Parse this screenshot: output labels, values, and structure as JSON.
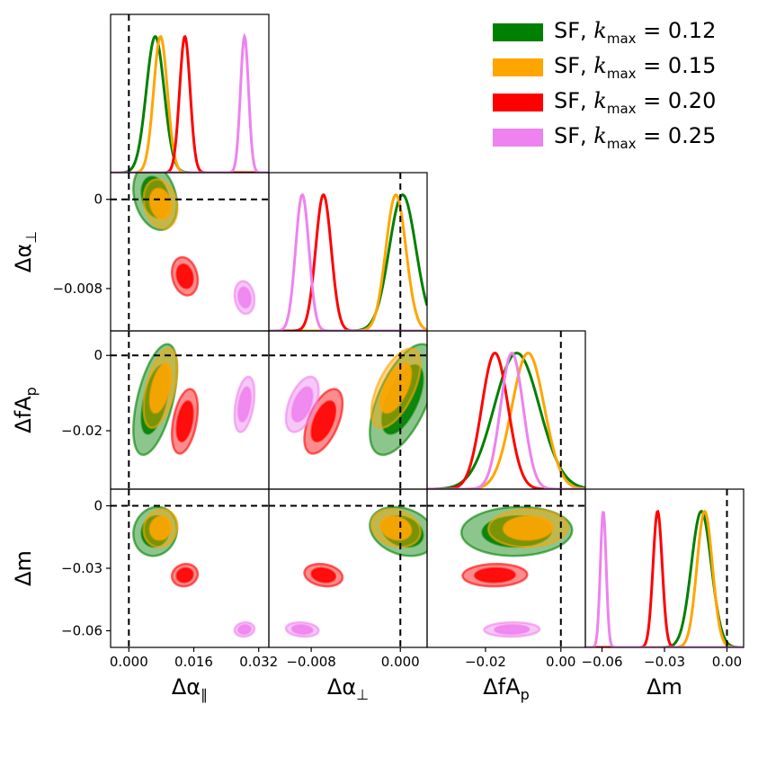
{
  "chart_data": {
    "type": "corner",
    "parameters": [
      {
        "key": "dapar",
        "label": "Δα",
        "label_sub": "∥",
        "range": [
          -0.0045,
          0.0345
        ],
        "ticks": [
          0,
          0.016,
          0.032
        ],
        "tick_labels": [
          "0.000",
          "0.016",
          "0.032"
        ],
        "fiducial": 0
      },
      {
        "key": "daperp",
        "label": "Δα",
        "label_sub": "⊥",
        "range": [
          -0.0118,
          0.0024
        ],
        "ticks": [
          -0.008,
          0
        ],
        "tick_labels": [
          "−0.008",
          "0.000"
        ],
        "y_tick_labels": [
          "−0.008",
          "0"
        ],
        "fiducial": 0
      },
      {
        "key": "dfap",
        "label": "ΔfA",
        "label_sub": "p",
        "range": [
          -0.0355,
          0.0065
        ],
        "ticks": [
          -0.02,
          0
        ],
        "tick_labels": [
          "−0.02",
          "0.00"
        ],
        "y_tick_labels": [
          "−0.02",
          "0"
        ],
        "fiducial": 0
      },
      {
        "key": "dm",
        "label": "Δm",
        "label_sub": "",
        "range": [
          -0.068,
          0.008
        ],
        "ticks": [
          -0.06,
          -0.03,
          0
        ],
        "tick_labels": [
          "−0.06",
          "−0.03",
          "0.00"
        ],
        "y_tick_labels": [
          "−0.06",
          "−0.03",
          "0"
        ],
        "fiducial": 0
      }
    ],
    "series": [
      {
        "name": "SF, k_max = 0.12",
        "color": "#008000",
        "mean": [
          0.0065,
          0.0002,
          -0.0117,
          -0.0123
        ],
        "sigma": [
          0.0022,
          0.0012,
          0.006,
          0.0048
        ],
        "corr": [
          [
            1,
            -0.25,
            0.55,
            0.1
          ],
          [
            -0.25,
            1,
            0.6,
            -0.25
          ],
          [
            0.55,
            0.6,
            1,
            0.05
          ],
          [
            0.1,
            -0.25,
            0.05,
            1
          ]
        ]
      },
      {
        "name": "SF, k_max = 0.15",
        "color": "#FFA500",
        "mean": [
          0.0078,
          -0.0004,
          -0.0087,
          -0.0107
        ],
        "sigma": [
          0.0017,
          0.0009,
          0.0043,
          0.0037
        ],
        "corr": [
          [
            1,
            -0.2,
            0.5,
            0.1
          ],
          [
            -0.2,
            1,
            0.6,
            -0.2
          ],
          [
            0.5,
            0.6,
            1,
            0.05
          ],
          [
            0.1,
            -0.2,
            0.05,
            1
          ]
        ]
      },
      {
        "name": "SF, k_max = 0.20",
        "color": "#FF0000",
        "mean": [
          0.0138,
          -0.0069,
          -0.0175,
          -0.0333
        ],
        "sigma": [
          0.0013,
          0.0007,
          0.0035,
          0.0022
        ],
        "corr": [
          [
            1,
            -0.2,
            0.4,
            0.1
          ],
          [
            -0.2,
            1,
            0.55,
            -0.2
          ],
          [
            0.4,
            0.55,
            1,
            0.05
          ],
          [
            0.1,
            -0.2,
            0.05,
            1
          ]
        ]
      },
      {
        "name": "SF, k_max = 0.25",
        "color": "#EE82EE",
        "mean": [
          0.0285,
          -0.0088,
          -0.013,
          -0.0594
        ],
        "sigma": [
          0.001,
          0.0006,
          0.003,
          0.0014
        ],
        "corr": [
          [
            1,
            -0.15,
            0.4,
            0.1
          ],
          [
            -0.15,
            1,
            0.5,
            -0.15
          ],
          [
            0.4,
            0.5,
            1,
            0.05
          ],
          [
            0.1,
            -0.15,
            0.05,
            1
          ]
        ]
      }
    ],
    "legend": [
      {
        "prefix": "SF, ",
        "k": "k",
        "sub": "max",
        "value": " = 0.12",
        "color": "#008000"
      },
      {
        "prefix": "SF, ",
        "k": "k",
        "sub": "max",
        "value": " = 0.15",
        "color": "#FFA500"
      },
      {
        "prefix": "SF, ",
        "k": "k",
        "sub": "max",
        "value": " = 0.20",
        "color": "#FF0000"
      },
      {
        "prefix": "SF, ",
        "k": "k",
        "sub": "max",
        "value": " = 0.25",
        "color": "#EE82EE"
      }
    ],
    "legend_position": "top-right",
    "contour_levels": [
      "68%",
      "95%"
    ],
    "fiducial_lines": "dashed black at 0"
  }
}
